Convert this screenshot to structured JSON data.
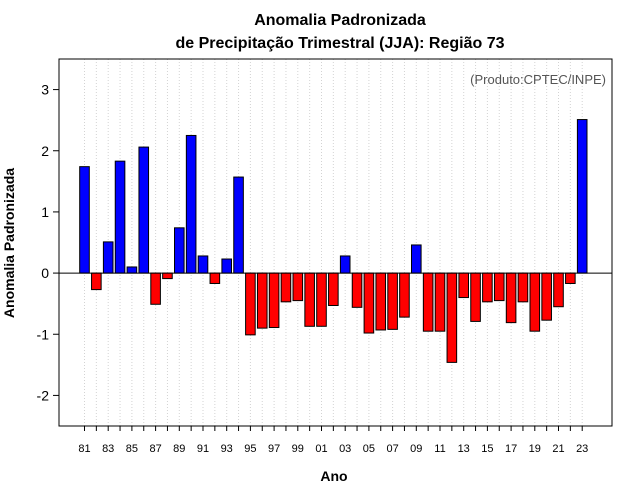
{
  "chart_data": {
    "type": "bar",
    "title": "Anomalia Padronizada",
    "subtitle": "de Precipitação Trimestral (JJA): Região 73",
    "xlabel": "Ano",
    "ylabel": "Anomalia Padronizada",
    "credit": "(Produto:CPTEC/INPE)",
    "ylim": [
      -2.5,
      3.5
    ],
    "yticks": [
      -2,
      -1,
      0,
      1,
      2,
      3
    ],
    "ytick_labels": [
      "-2",
      "-1",
      "0",
      "1",
      "2",
      "3"
    ],
    "xtick_labels": [
      "81",
      "83",
      "85",
      "87",
      "89",
      "91",
      "93",
      "95",
      "97",
      "99",
      "01",
      "03",
      "05",
      "07",
      "09",
      "11",
      "13",
      "15",
      "17",
      "19",
      "21",
      "23"
    ],
    "categories": [
      "1981",
      "1982",
      "1983",
      "1984",
      "1985",
      "1986",
      "1987",
      "1988",
      "1989",
      "1990",
      "1991",
      "1992",
      "1993",
      "1994",
      "1995",
      "1996",
      "1997",
      "1998",
      "1999",
      "2000",
      "2001",
      "2002",
      "2003",
      "2004",
      "2005",
      "2006",
      "2007",
      "2008",
      "2009",
      "2010",
      "2011",
      "2012",
      "2013",
      "2014",
      "2015",
      "2016",
      "2017",
      "2018",
      "2019",
      "2020",
      "2021",
      "2022",
      "2023"
    ],
    "values": [
      1.74,
      -0.27,
      0.51,
      1.83,
      0.1,
      2.06,
      -0.51,
      -0.09,
      0.74,
      2.25,
      0.28,
      -0.17,
      0.23,
      1.57,
      -1.01,
      -0.9,
      -0.89,
      -0.47,
      -0.45,
      -0.87,
      -0.87,
      -0.53,
      0.28,
      -0.56,
      -0.98,
      -0.93,
      -0.92,
      -0.72,
      0.46,
      -0.95,
      -0.95,
      -1.46,
      -0.4,
      -0.79,
      -0.47,
      -0.45,
      -0.81,
      -0.47,
      -0.95,
      -0.77,
      -0.55,
      -0.17,
      2.51
    ],
    "colors": {
      "positive": "#0000ff",
      "negative": "#ff0000",
      "outline": "#000000",
      "grid": "#d3d3d3"
    },
    "grid": true
  }
}
